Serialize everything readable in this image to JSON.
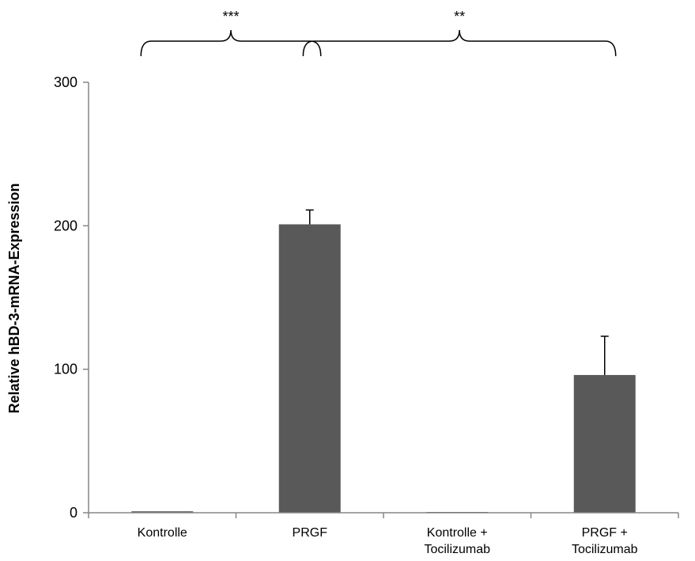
{
  "chart_data": {
    "type": "bar",
    "title": "",
    "xlabel": "",
    "ylabel": "Relative hBD-3-mRNA-Expression",
    "ylim": [
      0,
      300
    ],
    "yticks": [
      0,
      100,
      200,
      300
    ],
    "categories": [
      [
        "Kontrolle"
      ],
      [
        "PRGF"
      ],
      [
        "Kontrolle +",
        "Tocilizumab"
      ],
      [
        "PRGF +",
        "Tocilizumab"
      ]
    ],
    "values": [
      1,
      201,
      0.5,
      96
    ],
    "errors": [
      0,
      10,
      0,
      27
    ],
    "bar_color": "#595959",
    "grid": false,
    "significance": [
      {
        "from": 0,
        "to": 1,
        "label": "***"
      },
      {
        "from": 1.1,
        "to": 3,
        "label": "**"
      }
    ]
  }
}
